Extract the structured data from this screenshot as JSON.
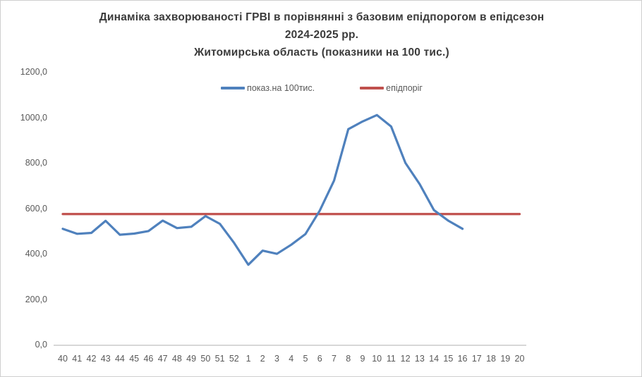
{
  "title": {
    "line1": "Динаміка захворюваності ГРВІ в порівнянні з базовим епідпорогом в епідсезон",
    "line2": "2024-2025 рр.",
    "line3": "Житомирська область (показники на 100 тис.)"
  },
  "legend": {
    "items": [
      {
        "label": "показ.на 100тис.",
        "color": "#4F81BD"
      },
      {
        "label": "епідпоріг",
        "color": "#C0504D"
      }
    ]
  },
  "colors": {
    "series_blue": "#4F81BD",
    "threshold_red": "#C0504D",
    "axis_line": "#BFBFBF",
    "tick_text": "#595959",
    "title_text": "#3b3b3b"
  },
  "chart_data": {
    "type": "line",
    "title": "Динаміка захворюваності ГРВІ в порівнянні з базовим епідпорогом в епідсезон 2024-2025 рр. Житомирська область (показники на 100 тис.)",
    "categories": [
      "40",
      "41",
      "42",
      "43",
      "44",
      "45",
      "46",
      "47",
      "48",
      "49",
      "50",
      "51",
      "52",
      "1",
      "2",
      "3",
      "4",
      "5",
      "6",
      "7",
      "8",
      "9",
      "10",
      "11",
      "12",
      "13",
      "14",
      "15",
      "16",
      "17",
      "18",
      "19",
      "20"
    ],
    "series": [
      {
        "name": "показ.на 100тис.",
        "color": "#4F81BD",
        "values": [
          510,
          488,
          492,
          545,
          484,
          489,
          500,
          546,
          513,
          519,
          566,
          532,
          448,
          352,
          414,
          400,
          440,
          487,
          590,
          722,
          948,
          982,
          1010,
          960,
          800,
          706,
          592,
          546,
          510
        ]
      },
      {
        "name": "епідпоріг",
        "color": "#C0504D",
        "constant": 575
      }
    ],
    "xlabel": "",
    "ylabel": "",
    "ylim": [
      0,
      1200
    ],
    "ytick_step": 200,
    "ytick_labels": [
      "0,0",
      "200,0",
      "400,0",
      "600,0",
      "800,0",
      "1000,0",
      "1200,0"
    ],
    "grid": false,
    "legend_position": "top-center"
  }
}
